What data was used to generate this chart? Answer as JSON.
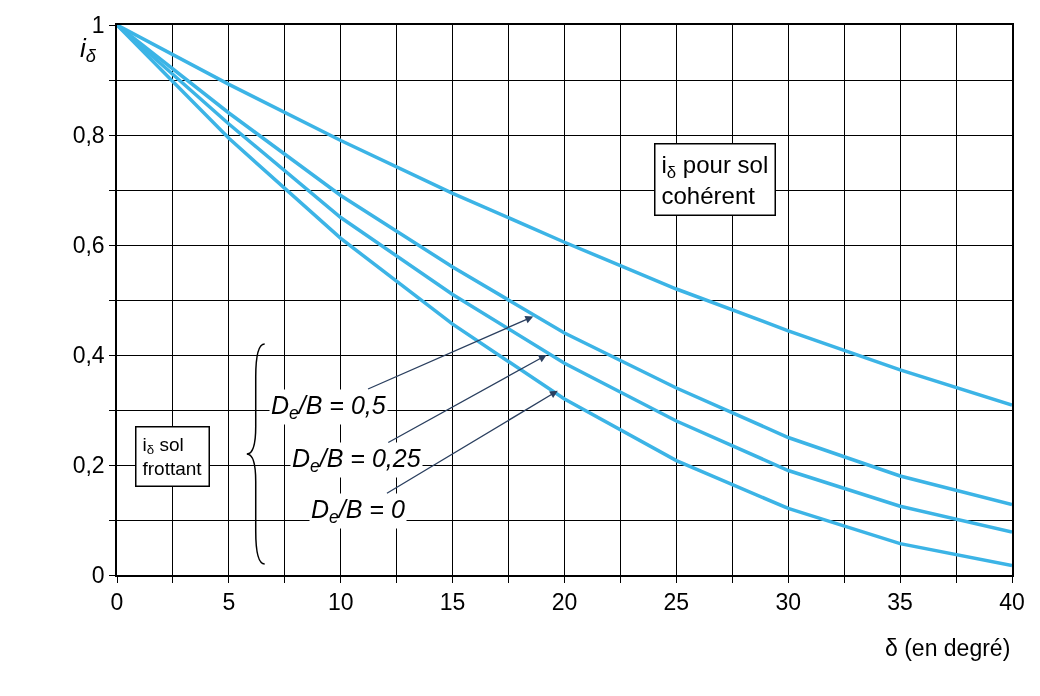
{
  "chart_data": {
    "type": "line",
    "xlabel": "δ (en degré)",
    "ylabel": "i$_{δ}$",
    "x": [
      0,
      5,
      10,
      15,
      20,
      25,
      30,
      35,
      40
    ],
    "series": [
      {
        "color": "#3cb4e6",
        "values": [
          1,
          0.892,
          0.79,
          0.694,
          0.605,
          0.52,
          0.444,
          0.373,
          0.309
        ]
      },
      {
        "color": "#3cb4e6",
        "values": [
          1,
          0.84,
          0.69,
          0.56,
          0.44,
          0.34,
          0.25,
          0.18,
          0.128
        ]
      },
      {
        "color": "#3cb4e6",
        "values": [
          1,
          0.82,
          0.65,
          0.51,
          0.385,
          0.28,
          0.19,
          0.125,
          0.078
        ]
      },
      {
        "color": "#3cb4e6",
        "values": [
          1,
          0.794,
          0.612,
          0.456,
          0.32,
          0.208,
          0.121,
          0.057,
          0.017
        ]
      }
    ],
    "xlim": [
      0,
      40
    ],
    "ylim": [
      0,
      1
    ],
    "xticks": [
      0,
      {
        "value": 2.5,
        "label": null
      },
      5,
      {
        "value": 7.5,
        "label": null
      },
      10,
      {
        "value": 12.5,
        "label": null
      },
      15,
      {
        "value": 17.5,
        "label": null
      },
      20,
      {
        "value": 22.5,
        "label": null
      },
      25,
      {
        "value": 27.5,
        "label": null
      },
      30,
      {
        "value": 32.5,
        "label": null
      },
      35,
      {
        "value": 37.5,
        "label": null
      },
      40
    ],
    "yticks": [
      {
        "value": 0,
        "label": "0"
      },
      {
        "value": 0.1,
        "label": null
      },
      {
        "value": 0.2,
        "label": "0,2"
      },
      {
        "value": 0.3,
        "label": null
      },
      {
        "value": 0.4,
        "label": "0,4"
      },
      {
        "value": 0.5,
        "label": null
      },
      {
        "value": 0.6,
        "label": "0,6"
      },
      {
        "value": 0.7,
        "label": null
      },
      {
        "value": 0.8,
        "label": "0,8"
      },
      {
        "value": 0.9,
        "label": null
      },
      {
        "value": 1,
        "label": "1"
      }
    ],
    "grid": true,
    "line_style": "solid",
    "marker": "none",
    "annotations": [
      "i$_{δ}$ pour sol cohérent",
      {
        "text": "D$_{e}$/B = 0,5",
        "x": 18.6,
        "y": 0.47
      },
      {
        "text": "D$_{e}$/B = 0,25",
        "x": 19.2,
        "y": 0.4
      },
      {
        "text": "D$_{e}$/B = 0",
        "x": 19.7,
        "y": 0.335
      },
      "i$_{δ}$ sol frottant"
    ]
  }
}
